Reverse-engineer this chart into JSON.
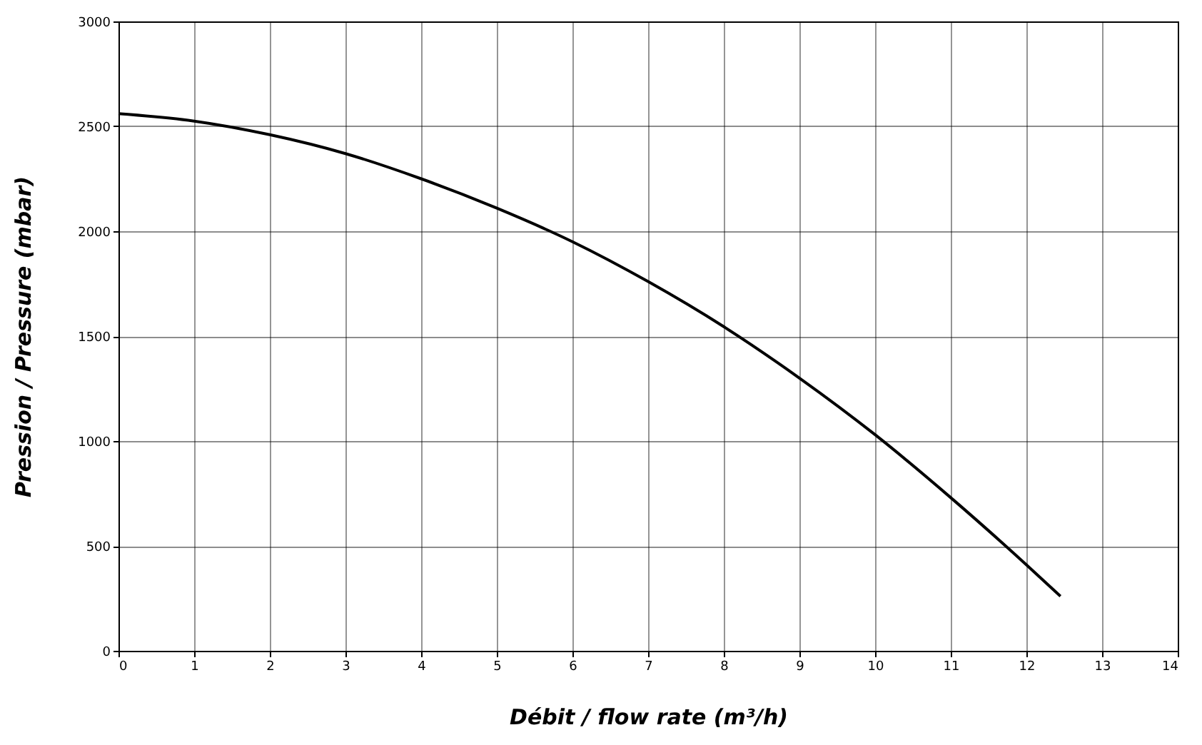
{
  "chart_data": {
    "type": "line",
    "xlabel": "Débit / flow rate (m³/h)",
    "ylabel": "Pression / Pressure (mbar)",
    "x": [
      0,
      1,
      2,
      3,
      4,
      5,
      6,
      7,
      8,
      9,
      10,
      11,
      12,
      12.45
    ],
    "series": [
      {
        "color": "#000000",
        "values": [
          2560,
          2525,
          2460,
          2370,
          2250,
          2110,
          1950,
          1760,
          1545,
          1300,
          1030,
          730,
          410,
          260
        ]
      }
    ],
    "xlim": [
      0,
      14
    ],
    "xticks": [
      0,
      1,
      2,
      3,
      4,
      5,
      6,
      7,
      8,
      9,
      10,
      11,
      12,
      13,
      14
    ],
    "ylim": [
      0,
      3000
    ],
    "yticks": [
      0,
      500,
      1000,
      1500,
      2000,
      2500,
      3000
    ],
    "grid": true,
    "marker": "none",
    "line_style": "solid"
  }
}
